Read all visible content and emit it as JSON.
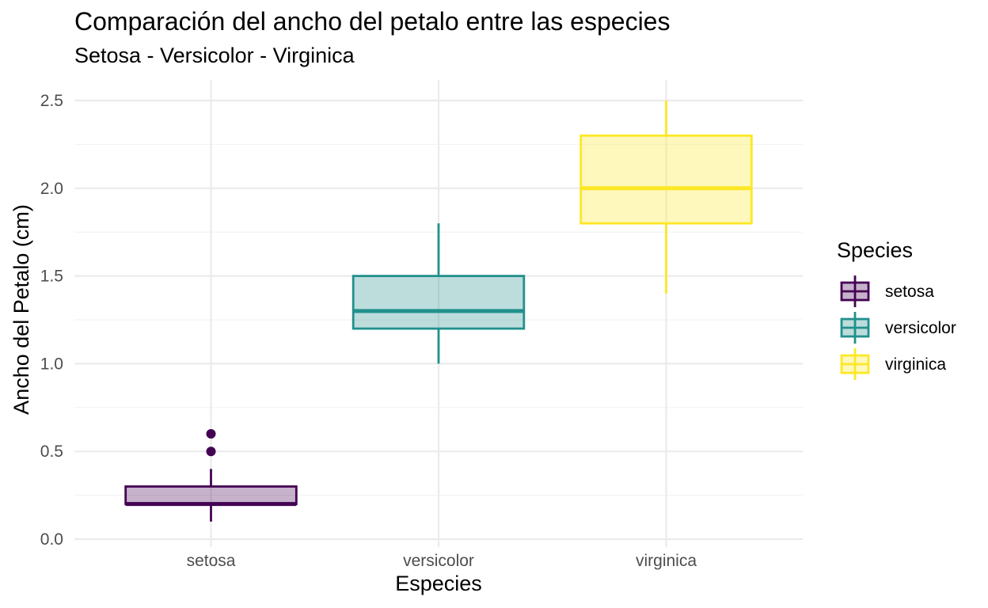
{
  "chart_data": {
    "type": "boxplot",
    "title": "Comparación del ancho del petalo entre las especies",
    "subtitle": "Setosa - Versicolor - Virginica",
    "xlabel": "Especies",
    "ylabel": "Ancho del Petalo (cm)",
    "categories": [
      "setosa",
      "versicolor",
      "virginica"
    ],
    "ylim": [
      0,
      2.6
    ],
    "y_ticks": [
      0.0,
      0.5,
      1.0,
      1.5,
      2.0,
      2.5
    ],
    "y_tick_labels": [
      "0.0",
      "0.5",
      "1.0",
      "1.5",
      "2.0",
      "2.5"
    ],
    "grid": true,
    "legend": {
      "title": "Species",
      "placement": "right"
    },
    "series": [
      {
        "name": "setosa",
        "color": "#440154",
        "min": 0.1,
        "q1": 0.2,
        "median": 0.2,
        "q3": 0.3,
        "max": 0.4,
        "outliers": [
          0.5,
          0.6
        ]
      },
      {
        "name": "versicolor",
        "color": "#21908C",
        "min": 1.0,
        "q1": 1.2,
        "median": 1.3,
        "q3": 1.5,
        "max": 1.8,
        "outliers": []
      },
      {
        "name": "virginica",
        "color": "#FDE725",
        "min": 1.4,
        "q1": 1.8,
        "median": 2.0,
        "q3": 2.3,
        "max": 2.5,
        "outliers": []
      }
    ]
  }
}
